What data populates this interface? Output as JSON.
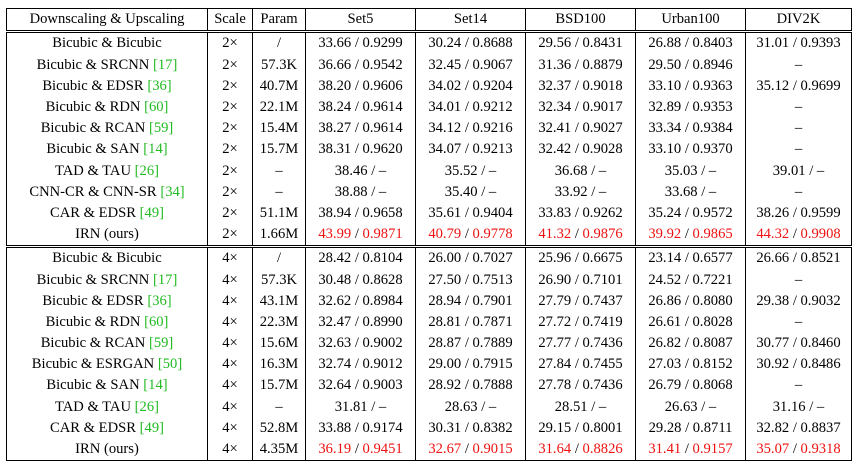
{
  "header": [
    "Downscaling & Upscaling",
    "Scale",
    "Param",
    "Set5",
    "Set14",
    "BSD100",
    "Urban100",
    "DIV2K"
  ],
  "groups": [
    {
      "rows": [
        {
          "method": "Bicubic & Bicubic",
          "ref": "",
          "scale": "2×",
          "param": "/",
          "cells": [
            [
              "33.66 / 0.9299"
            ],
            [
              "30.24 / 0.8688"
            ],
            [
              "29.56 / 0.8431"
            ],
            [
              "26.88 / 0.8403"
            ],
            [
              "31.01 / 0.9393"
            ]
          ]
        },
        {
          "method": "Bicubic & SRCNN",
          "ref": "17",
          "scale": "2×",
          "param": "57.3K",
          "cells": [
            [
              "36.66 / 0.9542"
            ],
            [
              "32.45 / 0.9067"
            ],
            [
              "31.36 / 0.8879"
            ],
            [
              "29.50 / 0.8946"
            ],
            [
              "–"
            ]
          ]
        },
        {
          "method": "Bicubic & EDSR",
          "ref": "36",
          "scale": "2×",
          "param": "40.7M",
          "cells": [
            [
              "38.20 / 0.9606"
            ],
            [
              "34.02 / 0.9204"
            ],
            [
              "32.37 / 0.9018"
            ],
            [
              "33.10 / 0.9363"
            ],
            [
              "35.12 / 0.9699"
            ]
          ]
        },
        {
          "method": "Bicubic & RDN",
          "ref": "60",
          "scale": "2×",
          "param": "22.1M",
          "cells": [
            [
              "38.24 / 0.9614"
            ],
            [
              "34.01 / 0.9212"
            ],
            [
              "32.34 / 0.9017"
            ],
            [
              "32.89 / 0.9353"
            ],
            [
              "–"
            ]
          ]
        },
        {
          "method": "Bicubic & RCAN",
          "ref": "59",
          "scale": "2×",
          "param": "15.4M",
          "cells": [
            [
              "38.27 / 0.9614"
            ],
            [
              "34.12 / 0.9216"
            ],
            [
              "32.41 / 0.9027"
            ],
            [
              "33.34 / 0.9384"
            ],
            [
              "–"
            ]
          ]
        },
        {
          "method": "Bicubic & SAN",
          "ref": "14",
          "scale": "2×",
          "param": "15.7M",
          "cells": [
            [
              "38.31 / 0.9620"
            ],
            [
              "34.07 / 0.9213"
            ],
            [
              "32.42 / 0.9028"
            ],
            [
              "33.10 / 0.9370"
            ],
            [
              "–"
            ]
          ]
        },
        {
          "method": "TAD & TAU",
          "ref": "26",
          "scale": "2×",
          "param": "–",
          "cells": [
            [
              "38.46 / –"
            ],
            [
              "35.52 / –"
            ],
            [
              "36.68 / –"
            ],
            [
              "35.03 / –"
            ],
            [
              "39.01 / –"
            ]
          ]
        },
        {
          "method": "CNN-CR & CNN-SR",
          "ref": "34",
          "scale": "2×",
          "param": "–",
          "cells": [
            [
              "38.88 / –"
            ],
            [
              "35.40 / –"
            ],
            [
              "33.92 / –"
            ],
            [
              "33.68 / –"
            ],
            [
              "–"
            ]
          ]
        },
        {
          "method": "CAR & EDSR",
          "ref": "49",
          "scale": "2×",
          "param": "51.1M",
          "cells": [
            [
              "38.94 / 0.9658"
            ],
            [
              "35.61 / 0.9404"
            ],
            [
              "33.83 / 0.9262"
            ],
            [
              "35.24 / 0.9572"
            ],
            [
              "38.26 / 0.9599"
            ]
          ]
        },
        {
          "method": "IRN (ours)",
          "ref": "",
          "scale": "2×",
          "param": "1.66M",
          "best": true,
          "cells": [
            [
              "43.99",
              "0.9871"
            ],
            [
              "40.79",
              "0.9778"
            ],
            [
              "41.32",
              "0.9876"
            ],
            [
              "39.92",
              "0.9865"
            ],
            [
              "44.32",
              "0.9908"
            ]
          ]
        }
      ]
    },
    {
      "rows": [
        {
          "method": "Bicubic & Bicubic",
          "ref": "",
          "scale": "4×",
          "param": "/",
          "cells": [
            [
              "28.42 / 0.8104"
            ],
            [
              "26.00 / 0.7027"
            ],
            [
              "25.96 / 0.6675"
            ],
            [
              "23.14 / 0.6577"
            ],
            [
              "26.66 / 0.8521"
            ]
          ]
        },
        {
          "method": "Bicubic & SRCNN",
          "ref": "17",
          "scale": "4×",
          "param": "57.3K",
          "cells": [
            [
              "30.48 / 0.8628"
            ],
            [
              "27.50 / 0.7513"
            ],
            [
              "26.90 / 0.7101"
            ],
            [
              "24.52 / 0.7221"
            ],
            [
              "–"
            ]
          ]
        },
        {
          "method": "Bicubic & EDSR",
          "ref": "36",
          "scale": "4×",
          "param": "43.1M",
          "cells": [
            [
              "32.62 / 0.8984"
            ],
            [
              "28.94 / 0.7901"
            ],
            [
              "27.79 / 0.7437"
            ],
            [
              "26.86 / 0.8080"
            ],
            [
              "29.38 / 0.9032"
            ]
          ]
        },
        {
          "method": "Bicubic & RDN",
          "ref": "60",
          "scale": "4×",
          "param": "22.3M",
          "cells": [
            [
              "32.47 / 0.8990"
            ],
            [
              "28.81 / 0.7871"
            ],
            [
              "27.72 / 0.7419"
            ],
            [
              "26.61 / 0.8028"
            ],
            [
              "–"
            ]
          ]
        },
        {
          "method": "Bicubic & RCAN",
          "ref": "59",
          "scale": "4×",
          "param": "15.6M",
          "cells": [
            [
              "32.63 / 0.9002"
            ],
            [
              "28.87 / 0.7889"
            ],
            [
              "27.77 / 0.7436"
            ],
            [
              "26.82 / 0.8087"
            ],
            [
              "30.77 / 0.8460"
            ]
          ]
        },
        {
          "method": "Bicubic & ESRGAN",
          "ref": "50",
          "scale": "4×",
          "param": "16.3M",
          "cells": [
            [
              "32.74 / 0.9012"
            ],
            [
              "29.00 / 0.7915"
            ],
            [
              "27.84 / 0.7455"
            ],
            [
              "27.03 / 0.8152"
            ],
            [
              "30.92 / 0.8486"
            ]
          ]
        },
        {
          "method": "Bicubic & SAN",
          "ref": "14",
          "scale": "4×",
          "param": "15.7M",
          "cells": [
            [
              "32.64 / 0.9003"
            ],
            [
              "28.92 / 0.7888"
            ],
            [
              "27.78 / 0.7436"
            ],
            [
              "26.79 / 0.8068"
            ],
            [
              "–"
            ]
          ]
        },
        {
          "method": "TAD & TAU",
          "ref": "26",
          "scale": "4×",
          "param": "–",
          "cells": [
            [
              "31.81 / –"
            ],
            [
              "28.63 / –"
            ],
            [
              "28.51 / –"
            ],
            [
              "26.63 / –"
            ],
            [
              "31.16 / –"
            ]
          ]
        },
        {
          "method": "CAR & EDSR",
          "ref": "49",
          "scale": "4×",
          "param": "52.8M",
          "cells": [
            [
              "33.88 / 0.9174"
            ],
            [
              "30.31 / 0.8382"
            ],
            [
              "29.15 / 0.8001"
            ],
            [
              "29.28 / 0.8711"
            ],
            [
              "32.82 / 0.8837"
            ]
          ]
        },
        {
          "method": "IRN (ours)",
          "ref": "",
          "scale": "4×",
          "param": "4.35M",
          "best": true,
          "cells": [
            [
              "36.19",
              "0.9451"
            ],
            [
              "32.67",
              "0.9015"
            ],
            [
              "31.64",
              "0.8826"
            ],
            [
              "31.41",
              "0.9157"
            ],
            [
              "35.07",
              "0.9318"
            ]
          ]
        }
      ]
    }
  ]
}
